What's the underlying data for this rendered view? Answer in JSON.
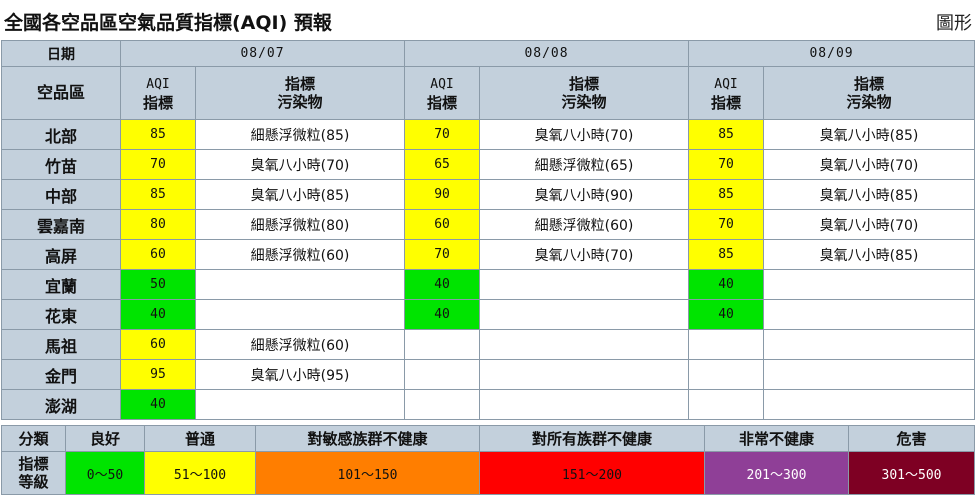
{
  "page": {
    "title": "全國各空品區空氣品質指標(AQI) 預報",
    "graph_link": "圖形"
  },
  "header": {
    "date_label": "日期",
    "area_label": "空品區",
    "aqi_en": "AQI",
    "aqi_zh": "指標",
    "pollutant_line1": "指標",
    "pollutant_line2": "污染物",
    "dates": [
      "08/07",
      "08/08",
      "08/09"
    ]
  },
  "rows": [
    {
      "area": "北部",
      "d": [
        {
          "aqi": "85",
          "color": "#ffff00",
          "p": "細懸浮微粒(85)"
        },
        {
          "aqi": "70",
          "color": "#ffff00",
          "p": "臭氧八小時(70)"
        },
        {
          "aqi": "85",
          "color": "#ffff00",
          "p": "臭氧八小時(85)"
        }
      ]
    },
    {
      "area": "竹苗",
      "d": [
        {
          "aqi": "70",
          "color": "#ffff00",
          "p": "臭氧八小時(70)"
        },
        {
          "aqi": "65",
          "color": "#ffff00",
          "p": "細懸浮微粒(65)"
        },
        {
          "aqi": "70",
          "color": "#ffff00",
          "p": "臭氧八小時(70)"
        }
      ]
    },
    {
      "area": "中部",
      "d": [
        {
          "aqi": "85",
          "color": "#ffff00",
          "p": "臭氧八小時(85)"
        },
        {
          "aqi": "90",
          "color": "#ffff00",
          "p": "臭氧八小時(90)"
        },
        {
          "aqi": "85",
          "color": "#ffff00",
          "p": "臭氧八小時(85)"
        }
      ]
    },
    {
      "area": "雲嘉南",
      "d": [
        {
          "aqi": "80",
          "color": "#ffff00",
          "p": "細懸浮微粒(80)"
        },
        {
          "aqi": "60",
          "color": "#ffff00",
          "p": "細懸浮微粒(60)"
        },
        {
          "aqi": "70",
          "color": "#ffff00",
          "p": "臭氧八小時(70)"
        }
      ]
    },
    {
      "area": "高屏",
      "d": [
        {
          "aqi": "60",
          "color": "#ffff00",
          "p": "細懸浮微粒(60)"
        },
        {
          "aqi": "70",
          "color": "#ffff00",
          "p": "臭氧八小時(70)"
        },
        {
          "aqi": "85",
          "color": "#ffff00",
          "p": "臭氧八小時(85)"
        }
      ]
    },
    {
      "area": "宜蘭",
      "d": [
        {
          "aqi": "50",
          "color": "#00e400",
          "p": ""
        },
        {
          "aqi": "40",
          "color": "#00e400",
          "p": ""
        },
        {
          "aqi": "40",
          "color": "#00e400",
          "p": ""
        }
      ]
    },
    {
      "area": "花東",
      "d": [
        {
          "aqi": "40",
          "color": "#00e400",
          "p": ""
        },
        {
          "aqi": "40",
          "color": "#00e400",
          "p": ""
        },
        {
          "aqi": "40",
          "color": "#00e400",
          "p": ""
        }
      ]
    },
    {
      "area": "馬祖",
      "d": [
        {
          "aqi": "60",
          "color": "#ffff00",
          "p": "細懸浮微粒(60)"
        },
        {
          "aqi": "",
          "color": "#ffffff",
          "p": ""
        },
        {
          "aqi": "",
          "color": "#ffffff",
          "p": ""
        }
      ]
    },
    {
      "area": "金門",
      "d": [
        {
          "aqi": "95",
          "color": "#ffff00",
          "p": "臭氧八小時(95)"
        },
        {
          "aqi": "",
          "color": "#ffffff",
          "p": ""
        },
        {
          "aqi": "",
          "color": "#ffffff",
          "p": ""
        }
      ]
    },
    {
      "area": "澎湖",
      "d": [
        {
          "aqi": "40",
          "color": "#00e400",
          "p": ""
        },
        {
          "aqi": "",
          "color": "#ffffff",
          "p": ""
        },
        {
          "aqi": "",
          "color": "#ffffff",
          "p": ""
        }
      ]
    }
  ],
  "legend": {
    "category_label": "分類",
    "level_label_1": "指標",
    "level_label_2": "等級",
    "levels": [
      {
        "name": "良好",
        "range": "0～50",
        "bg": "#00e400",
        "fg": "#111111"
      },
      {
        "name": "普通",
        "range": "51～100",
        "bg": "#ffff00",
        "fg": "#111111"
      },
      {
        "name": "對敏感族群不健康",
        "range": "101～150",
        "bg": "#ff7e00",
        "fg": "#111111"
      },
      {
        "name": "對所有族群不健康",
        "range": "151～200",
        "bg": "#ff0000",
        "fg": "#111111"
      },
      {
        "name": "非常不健康",
        "range": "201～300",
        "bg": "#8f3f97",
        "fg": "#ffffff"
      },
      {
        "name": "危害",
        "range": "301～500",
        "bg": "#7e0023",
        "fg": "#ffffff"
      }
    ]
  }
}
